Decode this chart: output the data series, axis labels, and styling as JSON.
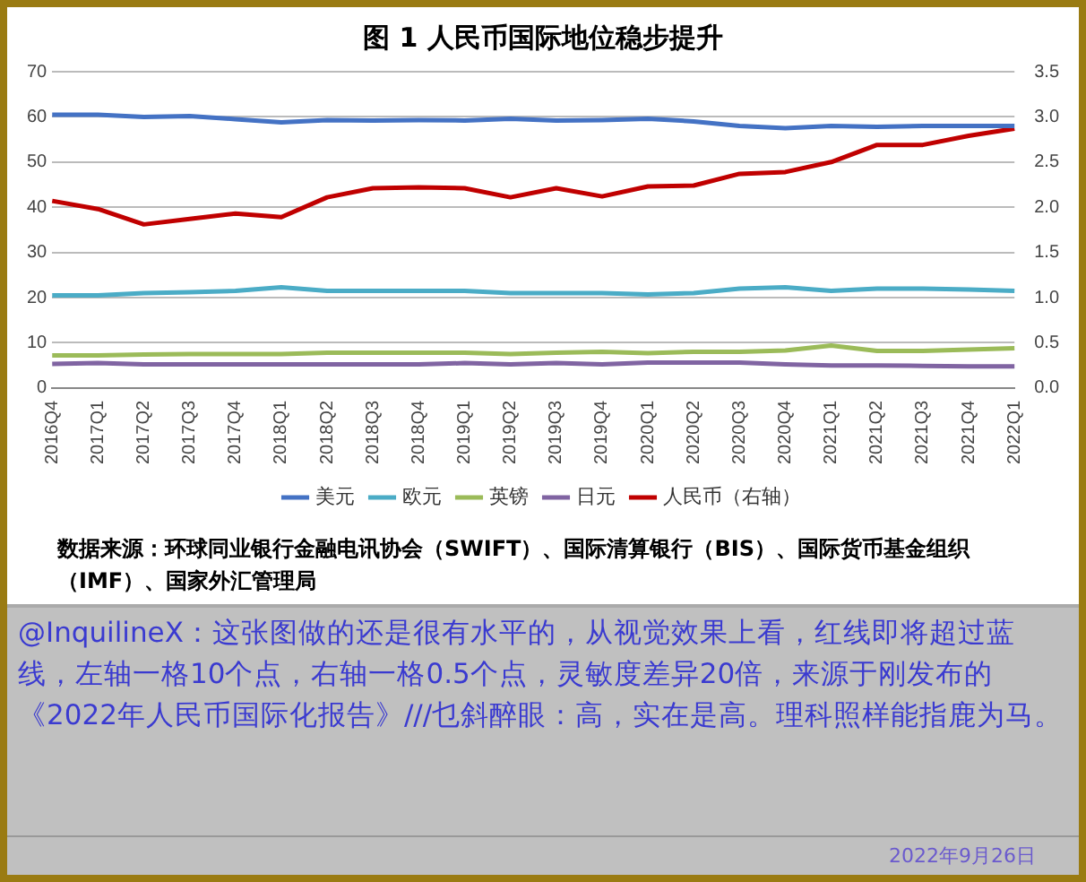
{
  "chart_data": {
    "type": "line",
    "title": "图 1 人民币国际地位稳步提升",
    "categories": [
      "2016Q4",
      "2017Q1",
      "2017Q2",
      "2017Q3",
      "2017Q4",
      "2018Q1",
      "2018Q2",
      "2018Q3",
      "2018Q4",
      "2019Q1",
      "2019Q2",
      "2019Q3",
      "2019Q4",
      "2020Q1",
      "2020Q2",
      "2020Q3",
      "2020Q4",
      "2021Q1",
      "2021Q2",
      "2021Q3",
      "2021Q4",
      "2022Q1"
    ],
    "series": [
      {
        "name": "美元",
        "color": "#4472c4",
        "values": [
          60.5,
          60.5,
          60,
          60.2,
          59.5,
          58.8,
          59.3,
          59.2,
          59.3,
          59.2,
          59.6,
          59.2,
          59.3,
          59.6,
          59,
          58,
          57.5,
          58,
          57.8,
          58,
          58,
          58
        ]
      },
      {
        "name": "欧元",
        "color": "#4bacc6",
        "values": [
          20.5,
          20.5,
          21,
          21.2,
          21.5,
          22.3,
          21.5,
          21.5,
          21.5,
          21.5,
          21,
          21,
          21,
          20.7,
          21,
          22,
          22.3,
          21.5,
          22,
          22,
          21.8,
          21.5
        ]
      },
      {
        "name": "英镑",
        "color": "#9bbb59",
        "values": [
          7.2,
          7.2,
          7.4,
          7.5,
          7.5,
          7.5,
          7.8,
          7.8,
          7.8,
          7.8,
          7.5,
          7.8,
          8,
          7.7,
          8,
          8,
          8.3,
          9.4,
          8.2,
          8.2,
          8.5,
          8.8
        ]
      },
      {
        "name": "日元",
        "color": "#8064a2",
        "values": [
          5.3,
          5.5,
          5.2,
          5.2,
          5.2,
          5.2,
          5.2,
          5.2,
          5.2,
          5.5,
          5.2,
          5.5,
          5.2,
          5.6,
          5.6,
          5.6,
          5.2,
          5,
          5,
          4.9,
          4.8,
          4.8
        ]
      },
      {
        "name": "人民币（右轴）",
        "color": "#c00000",
        "axis": "y2",
        "values": [
          2.07,
          1.98,
          1.81,
          1.87,
          1.93,
          1.89,
          2.11,
          2.21,
          2.22,
          2.21,
          2.11,
          2.21,
          2.12,
          2.23,
          2.24,
          2.37,
          2.39,
          2.5,
          2.69,
          2.69,
          2.79,
          2.87
        ]
      }
    ],
    "ylim": [
      0,
      70
    ],
    "yticks": [
      0,
      10,
      20,
      30,
      40,
      50,
      60,
      70
    ],
    "y2lim": [
      0,
      3.5
    ],
    "y2ticks": [
      {
        "value": 0,
        "label": "0.0"
      },
      0.5,
      {
        "value": 1,
        "label": "1.0"
      },
      1.5,
      {
        "value": 2,
        "label": "2.0"
      },
      2.5,
      {
        "value": 3,
        "label": "3.0"
      },
      3.5
    ],
    "grid": "y",
    "legend": "bottom",
    "marker": "none",
    "line_style": "solid",
    "annotations": [
      "数据来源：环球同业银行金融电讯协会（SWIFT）、国际清算银行（BIS）、国际货币基金组织（IMF）、国家外汇管理局",
      "@InquilineX：这张图做的还是很有水平的，从视觉效果上看，红线即将超过蓝线，左轴一格10个点，右轴一格0.5个点，灵敏度差异20倍，来源于刚发布的《2022年人民币国际化报告》///乜斜醉眼：高，实在是高。理科照样能指鹿为马。",
      "2022年9月26日"
    ]
  }
}
